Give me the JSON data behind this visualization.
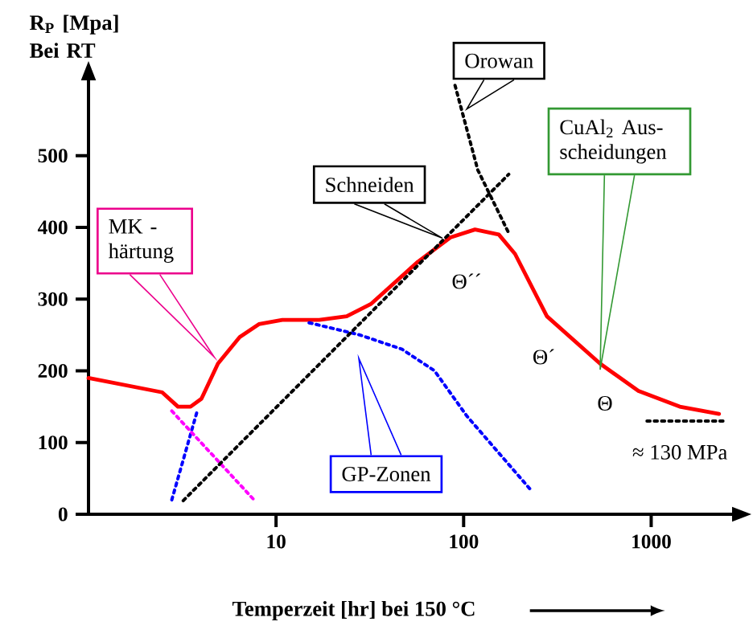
{
  "chart_data": {
    "type": "line",
    "xlabel": "Temperzeit [hr] bei 150 °C",
    "ylabel": "R$_{P}$ [Mpa] Bei RT",
    "log": "x",
    "xlim": [
      1,
      2700
    ],
    "ylim": [
      0,
      605
    ],
    "xticks": [
      10,
      100,
      1000
    ],
    "yticks": [
      0,
      100,
      200,
      300,
      400,
      500
    ],
    "marker": "none",
    "series": [
      {
        "color": "#ff0000",
        "line_style": "solid",
        "x": [
          1.0,
          2.47,
          3.0,
          3.5,
          4.0,
          4.9,
          6.4,
          8.1,
          10.8,
          17,
          23.8,
          32,
          57,
          85,
          115,
          154,
          188,
          278,
          534,
          855,
          1420,
          2300
        ],
        "values": [
          190,
          170,
          150,
          150,
          161,
          210,
          247,
          265,
          271,
          271,
          276,
          293,
          352,
          386,
          397,
          390,
          363,
          276,
          210,
          172,
          150,
          140
        ]
      },
      {
        "color": "#0000ff",
        "line_style": "dotted",
        "x": [
          2.78,
          3.8
        ],
        "values": [
          20,
          144
        ]
      },
      {
        "color": "#ff00ff",
        "line_style": "dotted",
        "x": [
          2.78,
          7.7
        ],
        "values": [
          144,
          19
        ]
      },
      {
        "color": "#0000ff",
        "line_style": "dotted",
        "x": [
          15,
          28,
          47,
          70,
          104,
          228
        ],
        "values": [
          267,
          250,
          230,
          200,
          137,
          34
        ]
      },
      {
        "color": "#000000",
        "line_style": "dotted",
        "x": [
          3.2,
          174
        ],
        "values": [
          19,
          474
        ]
      },
      {
        "color": "#000000",
        "line_style": "dotted",
        "x": [
          90,
          119,
          174
        ],
        "values": [
          598,
          480,
          392
        ]
      },
      {
        "color": "#000000",
        "line_style": "dotted",
        "x": [
          950,
          2500
        ],
        "values": [
          130,
          130
        ]
      }
    ],
    "annotations": [
      "MK - härtung",
      "GP-Zonen",
      {
        "text": "Schneiden",
        "x": 77,
        "y": 385
      },
      {
        "text": "Orowan",
        "x": 104,
        "y": 565
      },
      "CuAl$_{2}$ Aus-scheidungen",
      "Θ´´",
      "Θ´",
      "Θ",
      {
        "text": "≈ 130 MPa",
        "x": 1500,
        "y": 130
      }
    ]
  }
}
